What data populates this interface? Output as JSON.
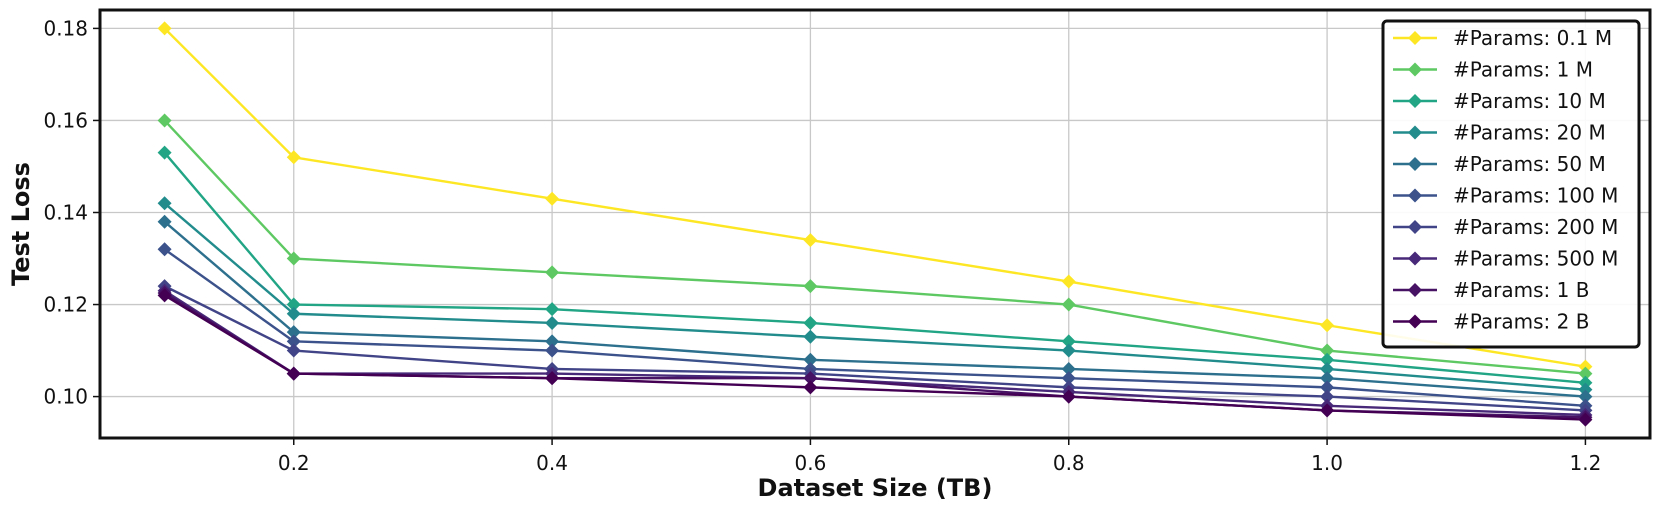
{
  "chart_data": {
    "type": "line",
    "title": "",
    "xlabel": "Dataset Size (TB)",
    "ylabel": "Test Loss",
    "xlim": [
      0.05,
      1.25
    ],
    "ylim": [
      0.091,
      0.184
    ],
    "xticks": [
      "0.2",
      "0.4",
      "0.6",
      "0.8",
      "1.0",
      "1.2"
    ],
    "yticks": [
      "0.10",
      "0.12",
      "0.14",
      "0.16",
      "0.18"
    ],
    "grid": true,
    "legend_position": "top-right",
    "marker": "diamond",
    "x": [
      0.1,
      0.2,
      0.4,
      0.6,
      0.8,
      1.0,
      1.2
    ],
    "series": [
      {
        "name": "#Params: 0.1 M",
        "color": "#fde725",
        "values": [
          0.18,
          0.152,
          0.143,
          0.134,
          0.125,
          0.1155,
          0.1065
        ]
      },
      {
        "name": "#Params: 1 M",
        "color": "#5ec962",
        "values": [
          0.16,
          0.13,
          0.127,
          0.124,
          0.12,
          0.11,
          0.105
        ]
      },
      {
        "name": "#Params: 10 M",
        "color": "#21a585",
        "values": [
          0.153,
          0.12,
          0.119,
          0.116,
          0.112,
          0.108,
          0.103
        ]
      },
      {
        "name": "#Params: 20 M",
        "color": "#228c8d",
        "values": [
          0.142,
          0.118,
          0.116,
          0.113,
          0.11,
          0.106,
          0.1015
        ]
      },
      {
        "name": "#Params: 50 M",
        "color": "#2d708e",
        "values": [
          0.138,
          0.114,
          0.112,
          0.108,
          0.106,
          0.104,
          0.1
        ]
      },
      {
        "name": "#Params: 100 M",
        "color": "#3b528b",
        "values": [
          0.132,
          0.112,
          0.11,
          0.106,
          0.104,
          0.102,
          0.098
        ]
      },
      {
        "name": "#Params: 200 M",
        "color": "#414487",
        "values": [
          0.124,
          0.11,
          0.106,
          0.105,
          0.102,
          0.1,
          0.097
        ]
      },
      {
        "name": "#Params: 500 M",
        "color": "#482878",
        "values": [
          0.123,
          0.105,
          0.105,
          0.104,
          0.101,
          0.098,
          0.096
        ]
      },
      {
        "name": "#Params: 1 B",
        "color": "#471164",
        "values": [
          0.1225,
          0.105,
          0.104,
          0.104,
          0.1,
          0.097,
          0.0955
        ]
      },
      {
        "name": "#Params: 2 B",
        "color": "#440154",
        "values": [
          0.122,
          0.105,
          0.104,
          0.102,
          0.1,
          0.097,
          0.095
        ]
      }
    ]
  }
}
